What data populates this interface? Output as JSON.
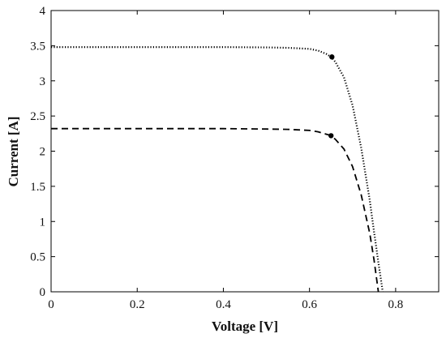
{
  "chart_data": {
    "type": "line",
    "xlabel": "Voltage [V]",
    "ylabel": "Current [A]",
    "xlim": [
      0,
      0.9
    ],
    "ylim": [
      0,
      4
    ],
    "xticks": [
      0,
      0.2,
      0.4,
      0.6,
      0.8
    ],
    "yticks": [
      0,
      0.5,
      1,
      1.5,
      2,
      2.5,
      3,
      3.5,
      4
    ],
    "xtick_labels": [
      "0",
      "0.2",
      "0.4",
      "0.6",
      "0.8"
    ],
    "ytick_labels": [
      "0",
      "0.5",
      "1",
      "1.5",
      "2",
      "2.5",
      "3",
      "3.5",
      "4"
    ],
    "grid": false,
    "series": [
      {
        "style": "dotted",
        "color": "#000000",
        "x": [
          0,
          0.1,
          0.2,
          0.3,
          0.4,
          0.5,
          0.55,
          0.6,
          0.62,
          0.64,
          0.65,
          0.66,
          0.68,
          0.7,
          0.72,
          0.74,
          0.75,
          0.76,
          0.77
        ],
        "y": [
          3.48,
          3.48,
          3.48,
          3.48,
          3.48,
          3.475,
          3.47,
          3.455,
          3.43,
          3.38,
          3.34,
          3.27,
          3.05,
          2.65,
          2.05,
          1.3,
          0.85,
          0.42,
          0.0
        ],
        "marker": {
          "x": 0.652,
          "y": 3.34
        }
      },
      {
        "style": "dashed",
        "color": "#000000",
        "x": [
          0,
          0.1,
          0.2,
          0.3,
          0.4,
          0.5,
          0.55,
          0.6,
          0.62,
          0.64,
          0.65,
          0.66,
          0.68,
          0.7,
          0.72,
          0.74,
          0.75,
          0.76
        ],
        "y": [
          2.32,
          2.32,
          2.32,
          2.32,
          2.32,
          2.315,
          2.31,
          2.295,
          2.275,
          2.24,
          2.22,
          2.17,
          2.03,
          1.78,
          1.38,
          0.83,
          0.45,
          0.0
        ],
        "marker": {
          "x": 0.65,
          "y": 2.22
        }
      }
    ]
  }
}
